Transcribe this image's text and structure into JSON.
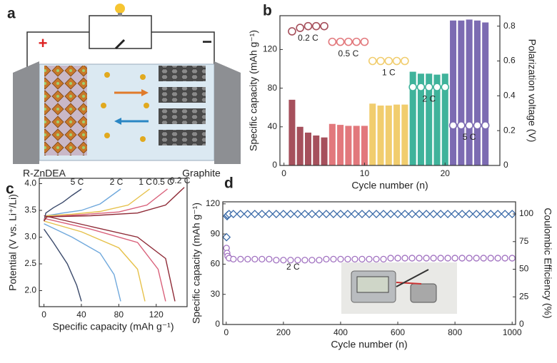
{
  "schematic": {
    "label": "a",
    "positive": "+",
    "negative": "−",
    "cathode": "R-ZnDEA",
    "anode": "Graphite"
  },
  "chart_data": [
    {
      "type": "bar",
      "panel": "b",
      "xlabel": "Cycle number (n)",
      "ylabel": "Specific capacity (mAh g⁻¹)",
      "y2label": "Polarization voltage (V)",
      "x": [
        1,
        2,
        3,
        4,
        5,
        6,
        7,
        8,
        9,
        10,
        11,
        12,
        13,
        14,
        15,
        16,
        17,
        18,
        19,
        20,
        21,
        22,
        23,
        24,
        25
      ],
      "xlim": [
        -0.5,
        26.8
      ],
      "xticks": [
        0,
        10,
        20
      ],
      "ylim": [
        0,
        155
      ],
      "yticks": [
        0,
        40,
        80,
        120
      ],
      "y2lim": [
        0,
        0.86
      ],
      "y2ticks": [
        0,
        0.2,
        0.4,
        0.6,
        0.8
      ],
      "rates": [
        "0.2 C",
        "0.5 C",
        "1 C",
        "2 C",
        "5 C"
      ],
      "colors": [
        "#a6505c",
        "#e2787c",
        "#f1cd6e",
        "#3fb39b",
        "#7c6bb2"
      ],
      "series": [
        {
          "type": "bar",
          "values": [
            68,
            40,
            34,
            31,
            29,
            43,
            42,
            41,
            41,
            41,
            64,
            62,
            62,
            63,
            63,
            97,
            95,
            95,
            94,
            95,
            150,
            150,
            151,
            150,
            148
          ]
        },
        {
          "type": "scatter",
          "axis": "y2",
          "values": [
            0.77,
            0.79,
            0.8,
            0.8,
            0.8,
            0.71,
            0.71,
            0.71,
            0.71,
            0.71,
            0.6,
            0.6,
            0.6,
            0.6,
            0.6,
            0.45,
            0.45,
            0.45,
            0.45,
            0.45,
            0.23,
            0.23,
            0.23,
            0.23,
            0.23
          ]
        }
      ]
    },
    {
      "type": "line",
      "panel": "c",
      "xlabel": "Specific capacity (mAh g⁻¹)",
      "ylabel": "Potential (V vs. Li⁺/Li)",
      "xlim": [
        -5,
        153
      ],
      "xticks": [
        0,
        40,
        80,
        120
      ],
      "ylim": [
        1.7,
        4.1
      ],
      "yticks": [
        {
          "value": 2,
          "label": "2.0"
        },
        2.5,
        {
          "value": 3,
          "label": "3.0"
        },
        3.5,
        {
          "value": 4,
          "label": "4.0"
        }
      ],
      "series": [
        {
          "name": "5 C",
          "color": "#3b4a6b",
          "x": [
            0,
            2,
            10,
            20,
            30,
            40,
            null,
            0,
            10,
            25,
            35,
            40
          ],
          "values": [
            3.3,
            3.45,
            3.55,
            3.65,
            3.78,
            3.9,
            null,
            3.15,
            2.9,
            2.5,
            2.1,
            1.8
          ]
        },
        {
          "name": "2 C",
          "color": "#6fa8dc",
          "x": [
            0,
            3,
            20,
            40,
            60,
            82,
            null,
            0,
            30,
            60,
            75,
            82
          ],
          "values": [
            3.3,
            3.4,
            3.45,
            3.5,
            3.62,
            3.9,
            null,
            3.25,
            3.0,
            2.7,
            2.3,
            1.8
          ]
        },
        {
          "name": "1 C",
          "color": "#e6c14a",
          "x": [
            0,
            3,
            30,
            60,
            90,
            113,
            null,
            0,
            40,
            80,
            100,
            108
          ],
          "values": [
            3.3,
            3.4,
            3.43,
            3.48,
            3.6,
            3.9,
            null,
            3.3,
            3.1,
            2.8,
            2.4,
            1.8
          ]
        },
        {
          "name": "0.5 C",
          "color": "#d9607a",
          "x": [
            0,
            3,
            40,
            80,
            110,
            132,
            null,
            0,
            50,
            100,
            122,
            130
          ],
          "values": [
            3.3,
            3.38,
            3.42,
            3.47,
            3.6,
            3.9,
            null,
            3.35,
            3.15,
            2.9,
            2.4,
            1.8
          ]
        },
        {
          "name": "0.2 C",
          "color": "#8e2a36",
          "x": [
            0,
            3,
            50,
            100,
            130,
            150,
            null,
            0,
            50,
            100,
            130,
            140
          ],
          "values": [
            3.3,
            3.38,
            3.4,
            3.45,
            3.6,
            3.93,
            null,
            3.4,
            3.2,
            3.0,
            2.6,
            1.8
          ]
        }
      ]
    },
    {
      "type": "scatter",
      "panel": "d",
      "xlabel": "Cycle number (n)",
      "ylabel": "Specific capacity (mAh g⁻¹)",
      "y2label": "Coulombic Efficiency (%)",
      "annotation": "2 C",
      "x": [
        1,
        3,
        5,
        10,
        25,
        50,
        75,
        100,
        125,
        150,
        175,
        200,
        225,
        250,
        275,
        300,
        325,
        350,
        375,
        400,
        425,
        450,
        475,
        500,
        525,
        550,
        575,
        600,
        625,
        650,
        675,
        700,
        725,
        750,
        775,
        800,
        825,
        850,
        875,
        900,
        925,
        950,
        975,
        1000
      ],
      "xlim": [
        -12,
        1012
      ],
      "xticks": [
        0,
        200,
        400,
        600,
        800,
        1000
      ],
      "ylim": [
        0,
        122
      ],
      "yticks": [
        0,
        30,
        60,
        90,
        120
      ],
      "y2lim": [
        0,
        111
      ],
      "y2ticks": [
        0,
        25,
        50,
        75,
        100
      ],
      "series": [
        {
          "marker": "circle",
          "color": "#a070c0",
          "values": [
            76,
            71,
            68,
            66,
            65,
            65,
            65,
            65,
            65,
            65,
            64,
            64,
            64,
            64,
            64,
            64,
            64,
            65,
            65,
            65,
            65,
            65,
            65,
            65,
            65,
            65,
            66,
            66,
            66,
            66,
            66,
            66,
            66,
            66,
            66,
            66,
            66,
            66,
            66,
            66,
            66,
            66,
            66,
            66
          ]
        },
        {
          "marker": "diamond",
          "axis": "y2",
          "color": "#3a6aa8",
          "values": [
            79,
            98,
            99,
            100,
            100,
            100,
            100,
            100,
            100,
            100,
            100,
            100,
            100,
            100,
            100,
            100,
            100,
            100,
            100,
            100,
            100,
            100,
            100,
            100,
            100,
            100,
            100,
            100,
            100,
            100,
            100,
            100,
            100,
            100,
            100,
            100,
            100,
            100,
            100,
            100,
            100,
            100,
            100,
            100
          ]
        }
      ]
    }
  ]
}
